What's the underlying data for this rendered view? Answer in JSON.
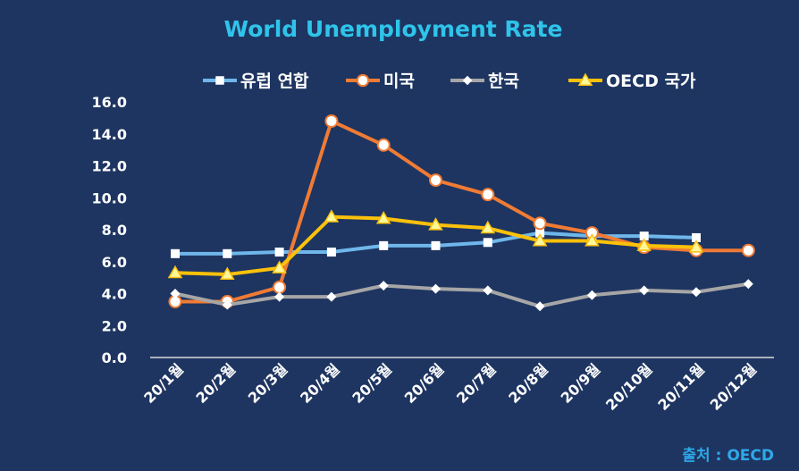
{
  "chart_data": {
    "type": "line",
    "title": "World Unemployment Rate",
    "xlabel": "",
    "ylabel": "",
    "ylim": [
      0,
      16
    ],
    "yticks": [
      "0.0",
      "2.0",
      "4.0",
      "6.0",
      "8.0",
      "10.0",
      "12.0",
      "14.0",
      "16.0"
    ],
    "categories": [
      "20/1월",
      "20/2월",
      "20/3월",
      "20/4월",
      "20/5월",
      "20/6월",
      "20/7월",
      "20/8월",
      "20/9월",
      "20/10월",
      "20/11월",
      "20/12월"
    ],
    "grid": false,
    "legend": "top",
    "series": [
      {
        "name": "유럽 연합",
        "color": "#6fb7ea",
        "marker": "square",
        "values": [
          6.5,
          6.5,
          6.6,
          6.6,
          7.0,
          7.0,
          7.2,
          7.8,
          7.6,
          7.6,
          7.5,
          null
        ]
      },
      {
        "name": "미국",
        "color": "#f07b34",
        "marker": "circle",
        "values": [
          3.5,
          3.5,
          4.4,
          14.8,
          13.3,
          11.1,
          10.2,
          8.4,
          7.8,
          6.9,
          6.7,
          6.7
        ]
      },
      {
        "name": "한국",
        "color": "#a6a6a6",
        "marker": "diamond",
        "values": [
          4.0,
          3.3,
          3.8,
          3.8,
          4.5,
          4.3,
          4.2,
          3.2,
          3.9,
          4.2,
          4.1,
          4.6
        ]
      },
      {
        "name": "OECD 국가",
        "color": "#fcc10a",
        "marker": "triangle",
        "values": [
          5.3,
          5.2,
          5.6,
          8.8,
          8.7,
          8.3,
          8.1,
          7.3,
          7.3,
          7.0,
          6.9,
          null
        ]
      }
    ],
    "source": "출처 : OECD"
  }
}
